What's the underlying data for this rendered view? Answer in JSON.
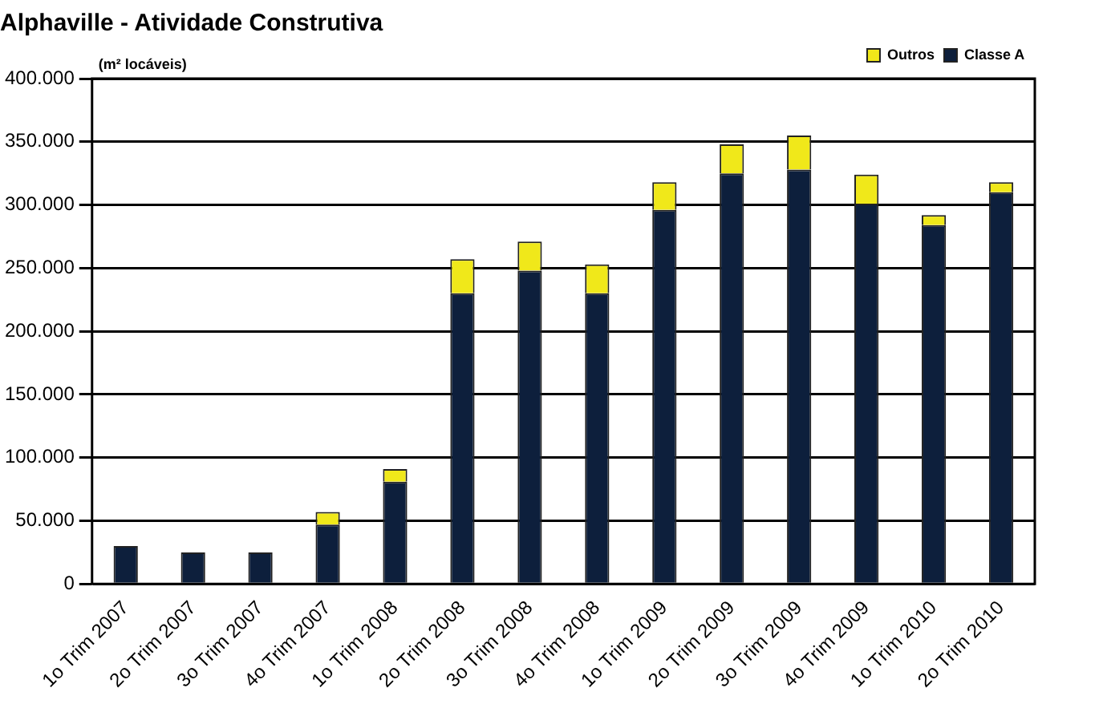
{
  "chart_data": {
    "type": "bar",
    "title": "Alphaville - Atividade Construtiva",
    "ylabel": "(m² locáveis)",
    "stacked": true,
    "legend": "top right",
    "grid": "y",
    "categories": [
      "1o Trim 2007",
      "2o Trim 2007",
      "3o Trim 2007",
      "4o Trim 2007",
      "1o Trim 2008",
      "2o Trim 2008",
      "3o Trim 2008",
      "4o Trim 2008",
      "1o Trim 2009",
      "2o Trim 2009",
      "3o Trim 2009",
      "4o Trim 2009",
      "1o Trim 2010",
      "2o Trim 2010"
    ],
    "series": [
      {
        "name": "Classe A",
        "color": "#0d1f3c",
        "values": [
          30000,
          25000,
          25000,
          47000,
          81000,
          230000,
          248000,
          230000,
          296000,
          325000,
          328000,
          301000,
          284000,
          310000
        ]
      },
      {
        "name": "Outros",
        "color": "#f0e81a",
        "values": [
          0,
          0,
          0,
          10000,
          10000,
          27000,
          23000,
          23000,
          22000,
          23000,
          27000,
          23000,
          8000,
          8000
        ]
      }
    ],
    "ylim": [
      0,
      400000
    ],
    "yticks": [
      {
        "value": 0,
        "label": "0"
      },
      {
        "value": 50000,
        "label": "50.000"
      },
      {
        "value": 100000,
        "label": "100.000"
      },
      {
        "value": 150000,
        "label": "150.000"
      },
      {
        "value": 200000,
        "label": "200.000"
      },
      {
        "value": 250000,
        "label": "250.000"
      },
      {
        "value": 300000,
        "label": "300.000"
      },
      {
        "value": 350000,
        "label": "350.000"
      },
      {
        "value": 400000,
        "label": "400.000"
      }
    ]
  }
}
